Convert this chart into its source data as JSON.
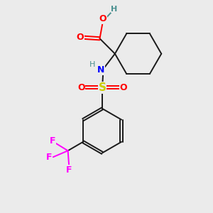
{
  "background_color": "#ebebeb",
  "atom_colors": {
    "O": "#ff0000",
    "N": "#0000ff",
    "S": "#cccc00",
    "F": "#ff00ff",
    "H_teal": "#4a9090",
    "C": "#1a1a1a"
  },
  "figsize": [
    3.0,
    3.0
  ],
  "dpi": 100
}
